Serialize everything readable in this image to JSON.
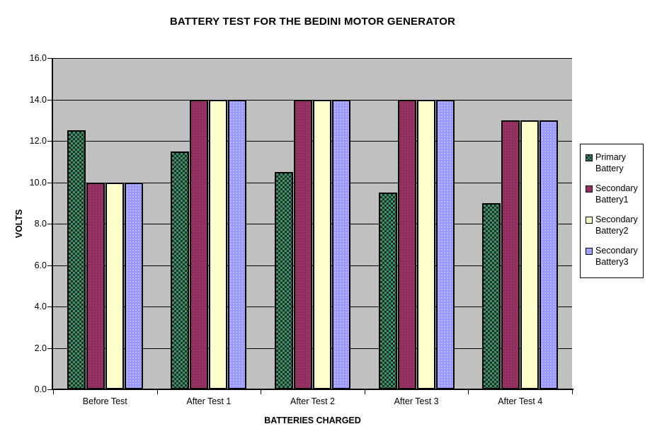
{
  "chart_data": {
    "type": "bar",
    "title": "BATTERY TEST FOR THE BEDINI MOTOR GENERATOR",
    "xlabel": "BATTERIES CHARGED",
    "ylabel": "VOLTS",
    "categories": [
      "Before Test",
      "After Test 1",
      "After Test 2",
      "After Test 3",
      "After Test 4"
    ],
    "series": [
      {
        "name": "Primary Battery",
        "values": [
          12.5,
          11.5,
          10.5,
          9.5,
          9.0
        ],
        "color": "#339966",
        "pattern": "checker",
        "pattern_color": "#2b2b2b"
      },
      {
        "name": "Secondary Battery1",
        "values": [
          10.0,
          14.0,
          14.0,
          14.0,
          13.0
        ],
        "color": "#993366",
        "pattern": "dots-dark",
        "pattern_color": ""
      },
      {
        "name": "Secondary Battery2",
        "values": [
          10.0,
          14.0,
          14.0,
          14.0,
          13.0
        ],
        "color": "#FFFFCC",
        "pattern": "none",
        "pattern_color": ""
      },
      {
        "name": "Secondary Battery3",
        "values": [
          10.0,
          14.0,
          14.0,
          14.0,
          13.0
        ],
        "color": "#9999FF",
        "pattern": "dots-light",
        "pattern_color": ""
      }
    ],
    "ylim": [
      0,
      16
    ],
    "ytick_step": 2,
    "ytick_labels": [
      "0.0",
      "2.0",
      "4.0",
      "6.0",
      "8.0",
      "10.0",
      "12.0",
      "14.0",
      "16.0"
    ],
    "grid": true,
    "gridline_color": "#000000",
    "plot_bg": "#C0C0C0",
    "page_bg": "#FFFFFF",
    "legend_position": "right"
  }
}
